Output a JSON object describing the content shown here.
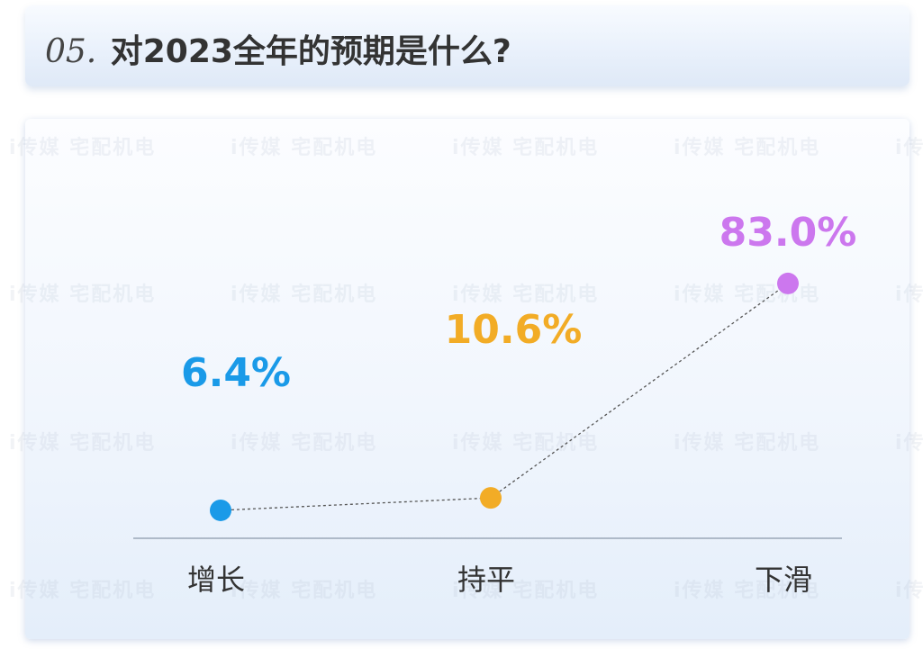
{
  "header": {
    "number": "05.",
    "title": "对2023全年的预期是什么?"
  },
  "watermark": {
    "text": "i传媒 宅配机电"
  },
  "chart_data": {
    "type": "line",
    "title": "对2023全年的预期是什么?",
    "categories": [
      "增长",
      "持平",
      "下滑"
    ],
    "values": [
      6.4,
      10.6,
      83.0
    ],
    "value_labels": [
      "6.4%",
      "10.6%",
      "83.0%"
    ],
    "point_colors": [
      "#1a9ae8",
      "#f2ac26",
      "#cc77ee"
    ],
    "line_style": "dashed",
    "line_color": "#555555",
    "axis_color": "#9aa7b8",
    "ylim": [
      0,
      100
    ],
    "grid": false,
    "legend": "none"
  }
}
